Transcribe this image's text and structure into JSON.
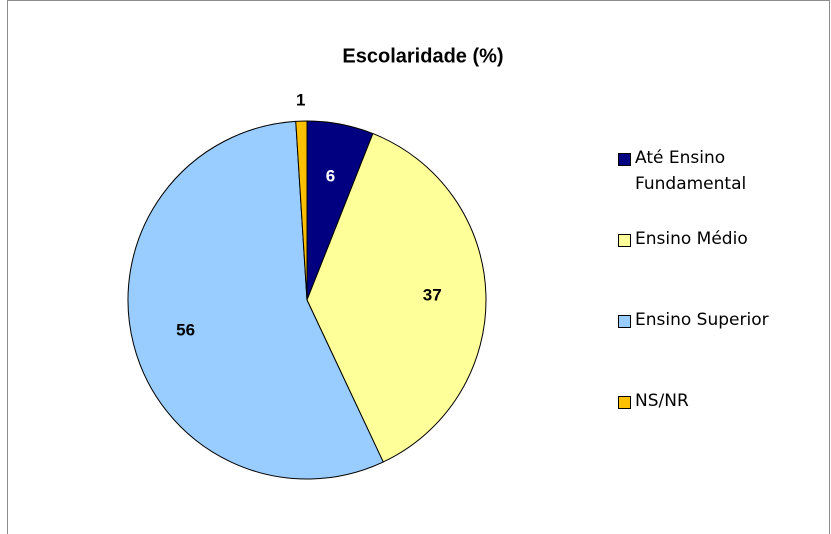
{
  "chart_data": {
    "type": "pie",
    "title": "Escolaridade (%)",
    "categories": [
      "Até Ensino Fundamental",
      "Ensino Médio",
      "Ensino Superior",
      "NS/NR"
    ],
    "values": [
      6,
      37,
      56,
      1
    ],
    "colors": [
      "#000080",
      "#ffff99",
      "#99ccff",
      "#ffc000"
    ]
  }
}
